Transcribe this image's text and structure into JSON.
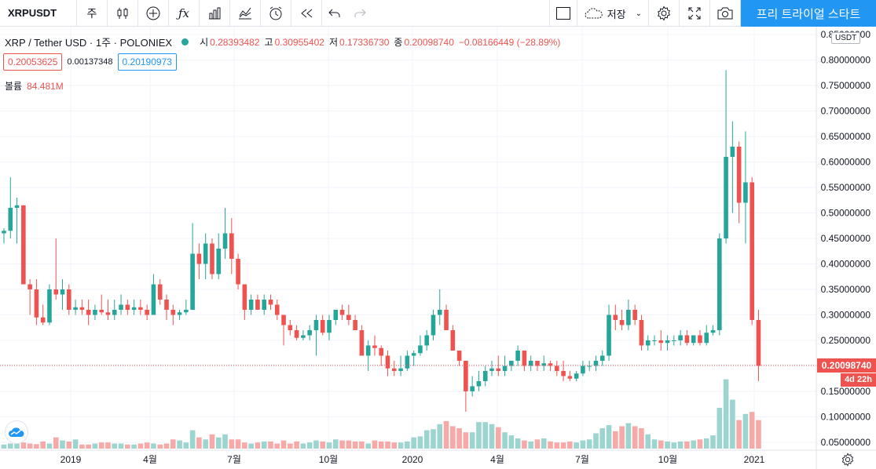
{
  "toolbar": {
    "symbol": "XRPUSDT",
    "interval": "주",
    "save_label": "저장",
    "trial_label": "프리 트라이얼 스타트",
    "icons": [
      "candles-icon",
      "add-indicator-icon",
      "fx-icon",
      "bar-chart-icon",
      "compare-icon",
      "alert-icon",
      "replay-icon",
      "undo-icon",
      "redo-icon",
      "layout-icon",
      "cloud-icon",
      "gear-icon",
      "fullscreen-icon",
      "camera-icon"
    ]
  },
  "legend": {
    "title": "XRP / Tether USD · 1주 · POLONIEX",
    "open_label": "시",
    "open": "0.28393482",
    "high_label": "고",
    "high": "0.30955402",
    "low_label": "저",
    "low": "0.17336730",
    "close_label": "종",
    "close": "0.20098740",
    "change": "−0.08166449 (−28.89%)",
    "bid": "0.20053625",
    "spread": "0.00137348",
    "ask": "0.20190973",
    "volume_label": "볼륨",
    "volume": "84.481M"
  },
  "colors": {
    "up": "#26a69a",
    "down": "#ef5350",
    "up_vol": "#9cd4cf",
    "down_vol": "#f7a9a7",
    "accent": "#2196f3"
  },
  "price_axis": {
    "unit": "USDT",
    "ticks": [
      "0.85000000",
      "0.80000000",
      "0.75000000",
      "0.70000000",
      "0.65000000",
      "0.60000000",
      "0.55000000",
      "0.50000000",
      "0.45000000",
      "0.40000000",
      "0.35000000",
      "0.30000000",
      "0.25000000",
      "0.20000000",
      "0.15000000",
      "0.10000000",
      "0.05000000"
    ],
    "last_price": "0.20098740",
    "countdown": "4d 22h"
  },
  "chart_data": {
    "type": "candlestick",
    "ylim": [
      0.04,
      0.86
    ],
    "x_ticks": [
      "2019",
      "4월",
      "7월",
      "10월",
      "2020",
      "4월",
      "7월",
      "10월",
      "2021"
    ],
    "last_price": 0.2009874,
    "candles": [
      [
        0.46,
        0.47,
        0.44,
        0.465
      ],
      [
        0.465,
        0.57,
        0.45,
        0.51
      ],
      [
        0.51,
        0.53,
        0.44,
        0.515
      ],
      [
        0.515,
        0.515,
        0.36,
        0.36
      ],
      [
        0.36,
        0.37,
        0.3,
        0.35
      ],
      [
        0.35,
        0.37,
        0.28,
        0.295
      ],
      [
        0.295,
        0.32,
        0.28,
        0.285
      ],
      [
        0.285,
        0.36,
        0.28,
        0.35
      ],
      [
        0.35,
        0.45,
        0.33,
        0.34
      ],
      [
        0.34,
        0.37,
        0.31,
        0.35
      ],
      [
        0.35,
        0.36,
        0.3,
        0.31
      ],
      [
        0.31,
        0.33,
        0.3,
        0.315
      ],
      [
        0.315,
        0.33,
        0.3,
        0.31
      ],
      [
        0.31,
        0.33,
        0.28,
        0.3
      ],
      [
        0.3,
        0.32,
        0.29,
        0.31
      ],
      [
        0.31,
        0.34,
        0.3,
        0.305
      ],
      [
        0.305,
        0.33,
        0.29,
        0.3
      ],
      [
        0.3,
        0.33,
        0.29,
        0.31
      ],
      [
        0.31,
        0.34,
        0.3,
        0.32
      ],
      [
        0.32,
        0.33,
        0.3,
        0.31
      ],
      [
        0.31,
        0.33,
        0.3,
        0.315
      ],
      [
        0.315,
        0.33,
        0.3,
        0.31
      ],
      [
        0.31,
        0.32,
        0.29,
        0.3
      ],
      [
        0.3,
        0.38,
        0.3,
        0.36
      ],
      [
        0.36,
        0.37,
        0.32,
        0.33
      ],
      [
        0.33,
        0.34,
        0.29,
        0.31
      ],
      [
        0.31,
        0.32,
        0.28,
        0.3
      ],
      [
        0.3,
        0.31,
        0.29,
        0.305
      ],
      [
        0.305,
        0.33,
        0.3,
        0.31
      ],
      [
        0.31,
        0.48,
        0.31,
        0.42
      ],
      [
        0.42,
        0.44,
        0.37,
        0.4
      ],
      [
        0.4,
        0.46,
        0.37,
        0.44
      ],
      [
        0.44,
        0.45,
        0.37,
        0.38
      ],
      [
        0.38,
        0.46,
        0.37,
        0.43
      ],
      [
        0.43,
        0.51,
        0.41,
        0.46
      ],
      [
        0.46,
        0.49,
        0.38,
        0.41
      ],
      [
        0.41,
        0.42,
        0.35,
        0.36
      ],
      [
        0.36,
        0.36,
        0.29,
        0.31
      ],
      [
        0.31,
        0.34,
        0.3,
        0.33
      ],
      [
        0.33,
        0.34,
        0.31,
        0.31
      ],
      [
        0.31,
        0.34,
        0.3,
        0.33
      ],
      [
        0.33,
        0.34,
        0.31,
        0.32
      ],
      [
        0.32,
        0.33,
        0.29,
        0.3
      ],
      [
        0.3,
        0.3,
        0.24,
        0.28
      ],
      [
        0.28,
        0.29,
        0.26,
        0.27
      ],
      [
        0.27,
        0.28,
        0.25,
        0.255
      ],
      [
        0.255,
        0.27,
        0.25,
        0.26
      ],
      [
        0.26,
        0.28,
        0.25,
        0.27
      ],
      [
        0.27,
        0.3,
        0.22,
        0.29
      ],
      [
        0.29,
        0.3,
        0.26,
        0.265
      ],
      [
        0.265,
        0.3,
        0.25,
        0.29
      ],
      [
        0.29,
        0.31,
        0.28,
        0.31
      ],
      [
        0.31,
        0.32,
        0.29,
        0.3
      ],
      [
        0.3,
        0.32,
        0.28,
        0.29
      ],
      [
        0.29,
        0.3,
        0.27,
        0.27
      ],
      [
        0.27,
        0.28,
        0.22,
        0.22
      ],
      [
        0.22,
        0.25,
        0.19,
        0.24
      ],
      [
        0.24,
        0.26,
        0.22,
        0.235
      ],
      [
        0.235,
        0.24,
        0.2,
        0.22
      ],
      [
        0.22,
        0.23,
        0.18,
        0.195
      ],
      [
        0.195,
        0.21,
        0.18,
        0.19
      ],
      [
        0.19,
        0.22,
        0.18,
        0.195
      ],
      [
        0.195,
        0.23,
        0.19,
        0.22
      ],
      [
        0.22,
        0.23,
        0.2,
        0.225
      ],
      [
        0.225,
        0.26,
        0.22,
        0.24
      ],
      [
        0.24,
        0.27,
        0.23,
        0.26
      ],
      [
        0.26,
        0.31,
        0.25,
        0.3
      ],
      [
        0.3,
        0.35,
        0.28,
        0.31
      ],
      [
        0.31,
        0.32,
        0.27,
        0.27
      ],
      [
        0.27,
        0.28,
        0.23,
        0.23
      ],
      [
        0.23,
        0.23,
        0.2,
        0.21
      ],
      [
        0.21,
        0.21,
        0.11,
        0.15
      ],
      [
        0.15,
        0.18,
        0.14,
        0.16
      ],
      [
        0.16,
        0.19,
        0.15,
        0.17
      ],
      [
        0.17,
        0.2,
        0.16,
        0.19
      ],
      [
        0.19,
        0.21,
        0.18,
        0.195
      ],
      [
        0.195,
        0.22,
        0.18,
        0.19
      ],
      [
        0.19,
        0.22,
        0.18,
        0.2
      ],
      [
        0.2,
        0.21,
        0.19,
        0.21
      ],
      [
        0.21,
        0.24,
        0.2,
        0.23
      ],
      [
        0.23,
        0.23,
        0.19,
        0.2
      ],
      [
        0.2,
        0.22,
        0.19,
        0.21
      ],
      [
        0.21,
        0.21,
        0.19,
        0.2
      ],
      [
        0.2,
        0.22,
        0.19,
        0.205
      ],
      [
        0.205,
        0.21,
        0.19,
        0.2
      ],
      [
        0.2,
        0.21,
        0.18,
        0.19
      ],
      [
        0.19,
        0.21,
        0.17,
        0.18
      ],
      [
        0.18,
        0.19,
        0.17,
        0.175
      ],
      [
        0.175,
        0.19,
        0.17,
        0.185
      ],
      [
        0.185,
        0.21,
        0.18,
        0.2
      ],
      [
        0.2,
        0.21,
        0.19,
        0.2
      ],
      [
        0.2,
        0.22,
        0.19,
        0.21
      ],
      [
        0.21,
        0.23,
        0.2,
        0.22
      ],
      [
        0.22,
        0.32,
        0.21,
        0.3
      ],
      [
        0.3,
        0.32,
        0.27,
        0.29
      ],
      [
        0.29,
        0.31,
        0.27,
        0.28
      ],
      [
        0.28,
        0.33,
        0.27,
        0.31
      ],
      [
        0.31,
        0.32,
        0.28,
        0.29
      ],
      [
        0.29,
        0.3,
        0.23,
        0.24
      ],
      [
        0.24,
        0.26,
        0.23,
        0.25
      ],
      [
        0.25,
        0.26,
        0.24,
        0.25
      ],
      [
        0.25,
        0.27,
        0.23,
        0.245
      ],
      [
        0.245,
        0.26,
        0.23,
        0.25
      ],
      [
        0.25,
        0.26,
        0.24,
        0.25
      ],
      [
        0.25,
        0.27,
        0.24,
        0.26
      ],
      [
        0.26,
        0.27,
        0.24,
        0.245
      ],
      [
        0.245,
        0.26,
        0.24,
        0.26
      ],
      [
        0.26,
        0.27,
        0.24,
        0.245
      ],
      [
        0.245,
        0.28,
        0.24,
        0.265
      ],
      [
        0.265,
        0.28,
        0.26,
        0.27
      ],
      [
        0.27,
        0.46,
        0.26,
        0.45
      ],
      [
        0.45,
        0.78,
        0.44,
        0.61
      ],
      [
        0.61,
        0.68,
        0.5,
        0.63
      ],
      [
        0.63,
        0.64,
        0.48,
        0.52
      ],
      [
        0.52,
        0.66,
        0.44,
        0.56
      ],
      [
        0.56,
        0.57,
        0.28,
        0.29
      ],
      [
        0.29,
        0.31,
        0.17,
        0.2
      ]
    ],
    "volumes": [
      0.2,
      0.25,
      0.3,
      0.3,
      0.25,
      0.22,
      0.35,
      0.25,
      0.55,
      0.4,
      0.35,
      0.45,
      0.2,
      0.2,
      0.25,
      0.3,
      0.3,
      0.25,
      0.25,
      0.2,
      0.2,
      0.25,
      0.3,
      0.25,
      0.2,
      0.25,
      0.45,
      0.4,
      0.3,
      0.9,
      0.55,
      0.45,
      0.7,
      0.55,
      0.7,
      0.45,
      0.45,
      0.3,
      0.25,
      0.3,
      0.35,
      0.35,
      0.25,
      0.4,
      0.25,
      0.35,
      0.25,
      0.3,
      0.4,
      0.35,
      0.3,
      0.45,
      0.4,
      0.4,
      0.35,
      0.35,
      0.25,
      0.4,
      0.35,
      0.35,
      0.3,
      0.3,
      0.35,
      0.55,
      0.6,
      0.9,
      0.95,
      1.2,
      1.35,
      1.1,
      1.0,
      0.8,
      0.8,
      1.3,
      1.3,
      1.2,
      1.05,
      0.8,
      0.65,
      0.5,
      0.4,
      0.35,
      0.45,
      0.5,
      0.35,
      0.3,
      0.3,
      0.35,
      0.3,
      0.4,
      0.45,
      0.75,
      1.0,
      1.15,
      0.85,
      1.1,
      1.25,
      1.1,
      1.0,
      0.7,
      0.45,
      0.4,
      0.35,
      0.3,
      0.35,
      0.35,
      0.4,
      0.45,
      0.5,
      0.65,
      2.0,
      3.4,
      2.4,
      1.4,
      1.7,
      1.8,
      1.4
    ]
  }
}
